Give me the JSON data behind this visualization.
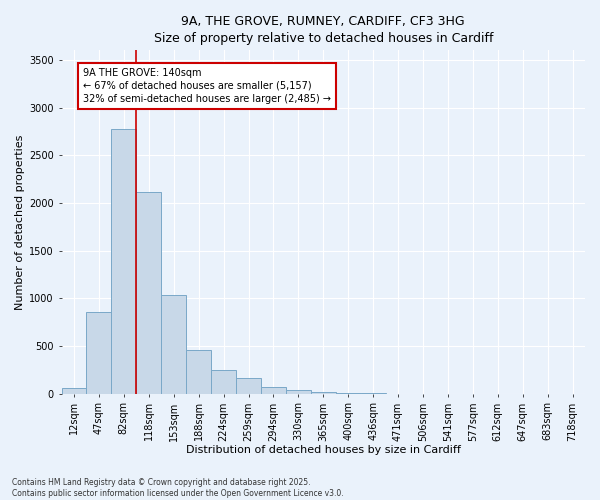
{
  "title_line1": "9A, THE GROVE, RUMNEY, CARDIFF, CF3 3HG",
  "title_line2": "Size of property relative to detached houses in Cardiff",
  "xlabel": "Distribution of detached houses by size in Cardiff",
  "ylabel": "Number of detached properties",
  "categories": [
    "12sqm",
    "47sqm",
    "82sqm",
    "118sqm",
    "153sqm",
    "188sqm",
    "224sqm",
    "259sqm",
    "294sqm",
    "330sqm",
    "365sqm",
    "400sqm",
    "436sqm",
    "471sqm",
    "506sqm",
    "541sqm",
    "577sqm",
    "612sqm",
    "647sqm",
    "683sqm",
    "718sqm"
  ],
  "values": [
    55,
    860,
    2780,
    2110,
    1040,
    455,
    250,
    160,
    65,
    35,
    20,
    10,
    5,
    2,
    1,
    0,
    0,
    0,
    0,
    0,
    0
  ],
  "bar_color": "#c8d8e8",
  "bar_edge_color": "#7aa8c8",
  "red_line_x": 2.5,
  "annotation_title": "9A THE GROVE: 140sqm",
  "annotation_line1": "← 67% of detached houses are smaller (5,157)",
  "annotation_line2": "32% of semi-detached houses are larger (2,485) →",
  "annotation_box_color": "#ffffff",
  "annotation_box_edge": "#cc0000",
  "red_line_color": "#cc0000",
  "ylim": [
    0,
    3600
  ],
  "yticks": [
    0,
    500,
    1000,
    1500,
    2000,
    2500,
    3000,
    3500
  ],
  "footer_line1": "Contains HM Land Registry data © Crown copyright and database right 2025.",
  "footer_line2": "Contains public sector information licensed under the Open Government Licence v3.0.",
  "bg_color": "#eaf2fb",
  "grid_color": "#ffffff",
  "title_fontsize": 9,
  "xlabel_fontsize": 8,
  "ylabel_fontsize": 8,
  "tick_fontsize": 7,
  "annotation_fontsize": 7,
  "footer_fontsize": 5.5
}
